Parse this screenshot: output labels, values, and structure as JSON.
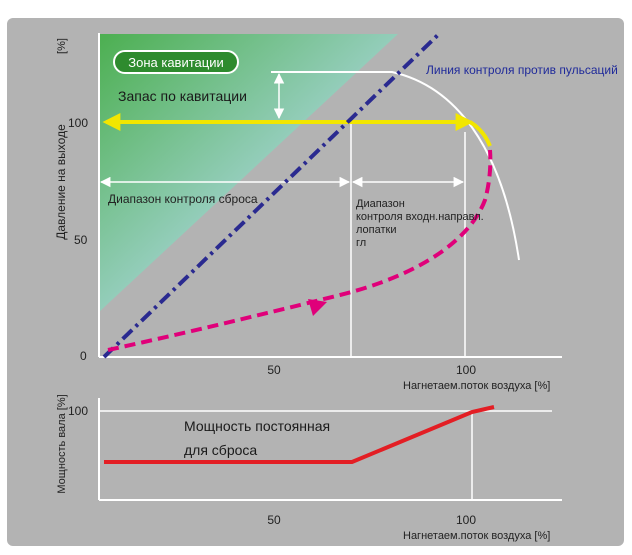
{
  "colors": {
    "panel_bg": "#b3b3b3",
    "zone_gradient_start": "#4caf50",
    "zone_gradient_end": "#b7dcef",
    "surge_line": "#2a2a90",
    "cavitation_margin_line": "#f2e600",
    "operating_curve": "#e0007a",
    "power_line": "#e31e24",
    "zone_badge": "#2e8b2e",
    "surge_label": "#1f2a9a",
    "guide_lines": "#ffffff"
  },
  "top_chart": {
    "y_axis_label": "Давление на выходе",
    "y_axis_unit": "[%]",
    "y_ticks": [
      "0",
      "50",
      "100"
    ],
    "x_ticks": [
      "50",
      "100"
    ],
    "x_axis_label": "Нагнетаем.поток воздуха [%]",
    "cavitation_zone_label": "Зона кавитации",
    "cavitation_margin_label": "Запас по кавитации",
    "surge_line_label": "Линия контроля против пульсаций",
    "bypass_range_label": "Диапазон контроля сброса",
    "igv_range_label": [
      "Диапазон",
      "контроля входн.направл.",
      "лопатки",
      "гл"
    ]
  },
  "bottom_chart": {
    "y_axis_label": "Мощность вала [%]",
    "y_ticks": [
      "100"
    ],
    "x_ticks": [
      "50",
      "100"
    ],
    "x_axis_label": "Нагнетаем.поток воздуха [%]",
    "constant_power_label": [
      "Мощность постоянная",
      "для  сброса"
    ]
  }
}
